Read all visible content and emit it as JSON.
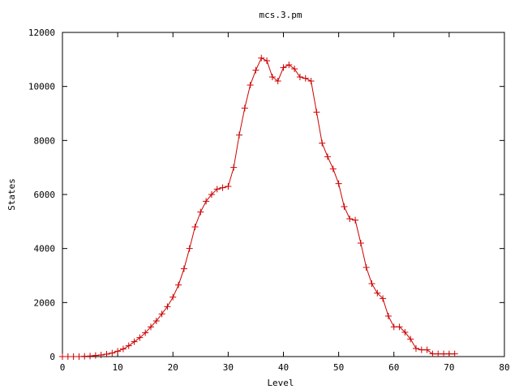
{
  "chart_data": {
    "type": "line",
    "title": "mcs.3.pm",
    "xlabel": "Level",
    "ylabel": "States",
    "xlim": [
      0,
      80
    ],
    "ylim": [
      0,
      12000
    ],
    "xticks": [
      0,
      10,
      20,
      30,
      40,
      50,
      60,
      70,
      80
    ],
    "yticks": [
      0,
      2000,
      4000,
      6000,
      8000,
      10000,
      12000
    ],
    "grid": false,
    "legend": "none",
    "colors": {
      "series": "#cc0000",
      "axes": "#000000"
    },
    "series": [
      {
        "marker": "plus",
        "x": [
          0,
          1,
          2,
          3,
          4,
          5,
          6,
          7,
          8,
          9,
          10,
          11,
          12,
          13,
          14,
          15,
          16,
          17,
          18,
          19,
          20,
          21,
          22,
          23,
          24,
          25,
          26,
          27,
          28,
          29,
          30,
          31,
          32,
          33,
          34,
          35,
          36,
          37,
          38,
          39,
          40,
          41,
          42,
          43,
          44,
          45,
          46,
          47,
          48,
          49,
          50,
          51,
          52,
          53,
          54,
          55,
          56,
          57,
          58,
          59,
          60,
          61,
          62,
          63,
          64,
          65,
          66,
          67,
          68,
          69,
          70,
          71
        ],
        "y": [
          0,
          0,
          0,
          0,
          10,
          20,
          40,
          60,
          90,
          130,
          200,
          280,
          400,
          550,
          700,
          880,
          1100,
          1320,
          1580,
          1850,
          2200,
          2650,
          3250,
          4000,
          4800,
          5350,
          5750,
          6000,
          6200,
          6250,
          6300,
          7000,
          8200,
          9200,
          10050,
          10600,
          11050,
          10950,
          10350,
          10200,
          10700,
          10800,
          10650,
          10350,
          10300,
          10200,
          9050,
          7900,
          7400,
          6950,
          6400,
          5550,
          5100,
          5050,
          4200,
          3300,
          2700,
          2350,
          2150,
          1500,
          1100,
          1100,
          900,
          650,
          300,
          250,
          250,
          100,
          100,
          100,
          100,
          100
        ]
      }
    ]
  }
}
